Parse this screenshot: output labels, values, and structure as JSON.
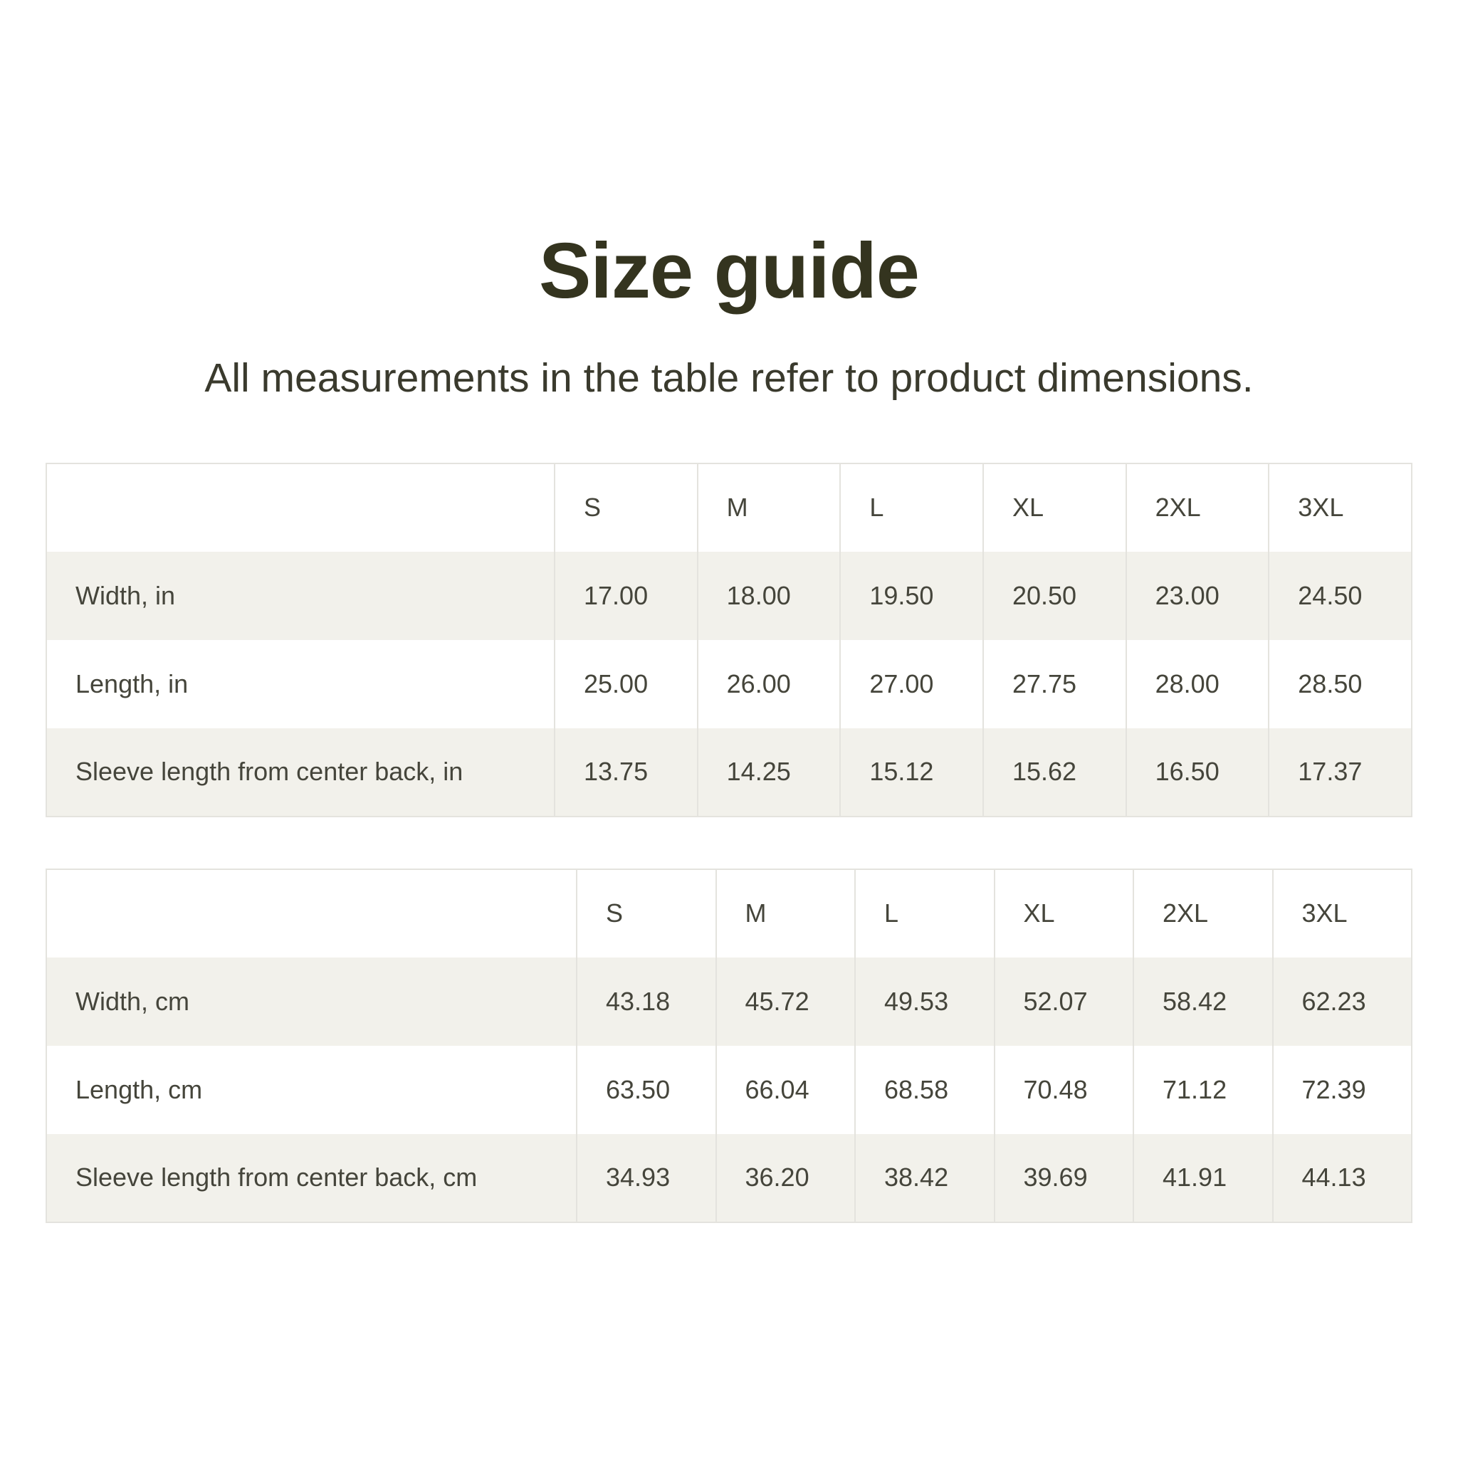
{
  "page": {
    "title": "Size guide",
    "subtitle": "All measurements in the table refer to product dimensions."
  },
  "colors": {
    "title_text": "#34341f",
    "subtitle_text": "#3a3a2d",
    "table_text": "#45453b",
    "stripe_background": "#f2f1eb",
    "table_border": "#e4e3de",
    "page_background": "#ffffff"
  },
  "tables": [
    {
      "name": "imperial",
      "columns": [
        "",
        "S",
        "M",
        "L",
        "XL",
        "2XL",
        "3XL"
      ],
      "rows": [
        {
          "label": "Width, in",
          "values": [
            "17.00",
            "18.00",
            "19.50",
            "20.50",
            "23.00",
            "24.50"
          ]
        },
        {
          "label": "Length, in",
          "values": [
            "25.00",
            "26.00",
            "27.00",
            "27.75",
            "28.00",
            "28.50"
          ]
        },
        {
          "label": "Sleeve length from center back, in",
          "values": [
            "13.75",
            "14.25",
            "15.12",
            "15.62",
            "16.50",
            "17.37"
          ]
        }
      ]
    },
    {
      "name": "metric",
      "columns": [
        "",
        "S",
        "M",
        "L",
        "XL",
        "2XL",
        "3XL"
      ],
      "rows": [
        {
          "label": "Width, cm",
          "values": [
            "43.18",
            "45.72",
            "49.53",
            "52.07",
            "58.42",
            "62.23"
          ]
        },
        {
          "label": "Length, cm",
          "values": [
            "63.50",
            "66.04",
            "68.58",
            "70.48",
            "71.12",
            "72.39"
          ]
        },
        {
          "label": "Sleeve length from center back, cm",
          "values": [
            "34.93",
            "36.20",
            "38.42",
            "39.69",
            "41.91",
            "44.13"
          ]
        }
      ]
    }
  ]
}
